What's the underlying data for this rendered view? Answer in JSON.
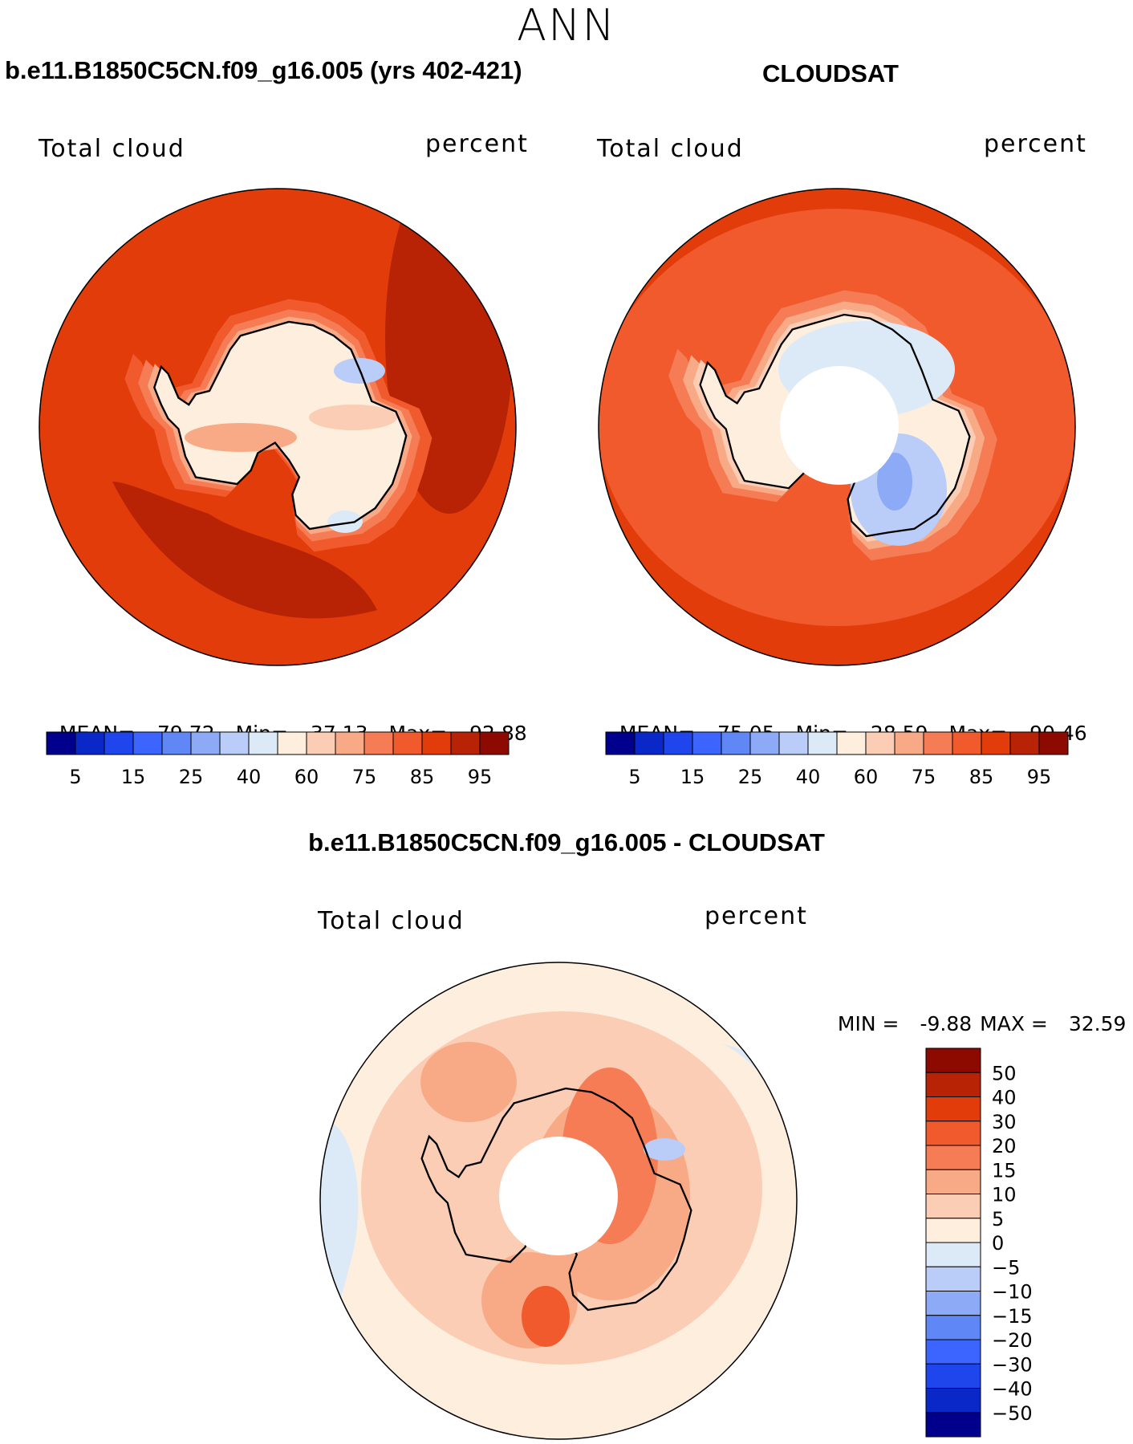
{
  "figure": {
    "season": "ANN",
    "left_panel": {
      "title": "b.e11.B1850C5CN.f09_g16.005 (yrs 402-421)",
      "variable": "Total cloud",
      "units": "percent",
      "stats": {
        "mean_label": "MEAN=",
        "mean": "79.72",
        "min_label": "Min=",
        "min": "37.13",
        "max_label": "Max=",
        "max": "92.88"
      },
      "has_polar_gap": false
    },
    "right_panel": {
      "title": "CLOUDSAT",
      "variable": "Total cloud",
      "units": "percent",
      "stats": {
        "mean_label": "MEAN=",
        "mean": "75.05",
        "min_label": "Min=",
        "min": "28.59",
        "max_label": "Max=",
        "max": "90.46"
      },
      "has_polar_gap": true
    },
    "diff_panel": {
      "title": "b.e11.B1850C5CN.f09_g16.005 - CLOUDSAT",
      "variable": "Total cloud",
      "units": "percent",
      "stats": {
        "min_label": "MIN =",
        "min": "-9.88",
        "max_label": "MAX =",
        "max": "32.59"
      },
      "has_polar_gap": true
    }
  },
  "colorbars": {
    "abs": {
      "tick_labels": [
        "5",
        "15",
        "25",
        "40",
        "60",
        "75",
        "85",
        "95"
      ],
      "colors": [
        "#00008c",
        "#0a28c8",
        "#1e46ec",
        "#3c64ff",
        "#5f87f5",
        "#8caaf5",
        "#b9cdf8",
        "#dceaf8",
        "#fdeede",
        "#fbcdb5",
        "#f8a986",
        "#f57c55",
        "#f05a2d",
        "#e13c0a",
        "#b92305",
        "#8c0a00"
      ]
    },
    "diff": {
      "tick_labels": [
        "50",
        "40",
        "30",
        "20",
        "15",
        "10",
        "5",
        "0",
        "−5",
        "−10",
        "−15",
        "−20",
        "−30",
        "−40",
        "−50"
      ],
      "colors": [
        "#8c0a00",
        "#b92305",
        "#e13c0a",
        "#f05a2d",
        "#f57c55",
        "#f8a986",
        "#fbcdb5",
        "#fdeede",
        "#dceaf8",
        "#b9cdf8",
        "#8caaf5",
        "#5f87f5",
        "#3c64ff",
        "#1e46ec",
        "#0a28c8",
        "#00008c"
      ]
    }
  }
}
